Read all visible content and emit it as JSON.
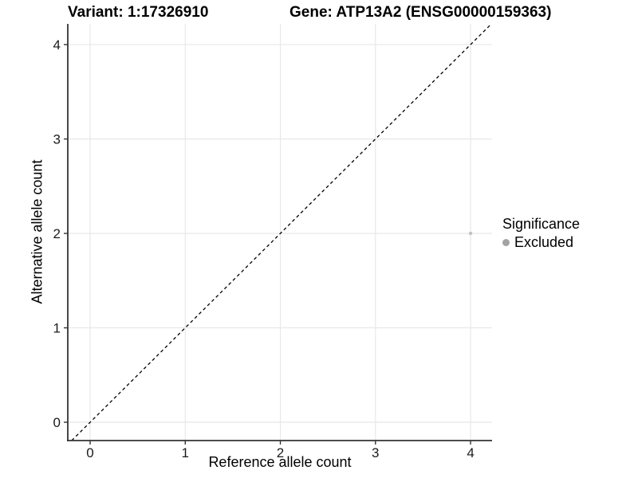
{
  "header": {
    "variant_title": "Variant: 1:17326910",
    "gene_title": "Gene: ATP13A2 (ENSG00000159363)"
  },
  "chart_data": {
    "type": "scatter",
    "xlabel": "Reference allele count",
    "ylabel": "Alternative allele count",
    "xlim": [
      -0.235,
      4.226
    ],
    "ylim": [
      -0.194,
      4.219
    ],
    "xticks": [
      0,
      1,
      2,
      3,
      4
    ],
    "yticks": [
      0,
      1,
      2,
      3,
      4
    ],
    "minor_grid_step": 0.5,
    "grid": "on",
    "points": [
      {
        "x": 4,
        "y": 2,
        "series": "Excluded"
      }
    ],
    "reference_line": {
      "type": "identity",
      "slope": 1,
      "intercept": 0,
      "style": "dashed"
    },
    "legend": {
      "position": "right",
      "title": "Significance",
      "items": [
        {
          "label": "Excluded",
          "color": "#a3a3a3"
        }
      ]
    }
  },
  "colors": {
    "background": "#ffffff",
    "major_grid": "#e8e8e8",
    "minor_grid": "#f4f4f4",
    "axis_line": "#333333",
    "tick_mark": "#333333",
    "tick_label": "#1a1a1a",
    "dashed_line": "#000000",
    "data_point": "#c2c2c2",
    "legend_dot": "#a3a3a3"
  }
}
